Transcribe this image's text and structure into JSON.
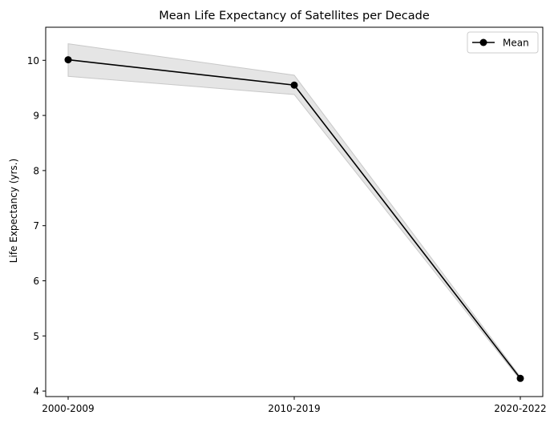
{
  "chart_data": {
    "type": "line",
    "title": "Mean Life Expectancy of Satellites per Decade",
    "xlabel": "",
    "ylabel": "Life Expectancy (yrs.)",
    "categories": [
      "2000-2009",
      "2010-2019",
      "2020-2022"
    ],
    "series": [
      {
        "name": "Mean",
        "values": [
          10.01,
          9.55,
          4.23
        ],
        "band_upper": [
          10.3,
          9.73,
          4.26
        ],
        "band_lower": [
          9.71,
          9.38,
          4.2
        ],
        "color": "#000000",
        "marker": "circle"
      }
    ],
    "band_color": "#d3d3d3",
    "yticks": [
      4,
      5,
      6,
      7,
      8,
      9,
      10
    ],
    "ylim": [
      3.9,
      10.6
    ],
    "grid": false,
    "legend": "top-right"
  }
}
